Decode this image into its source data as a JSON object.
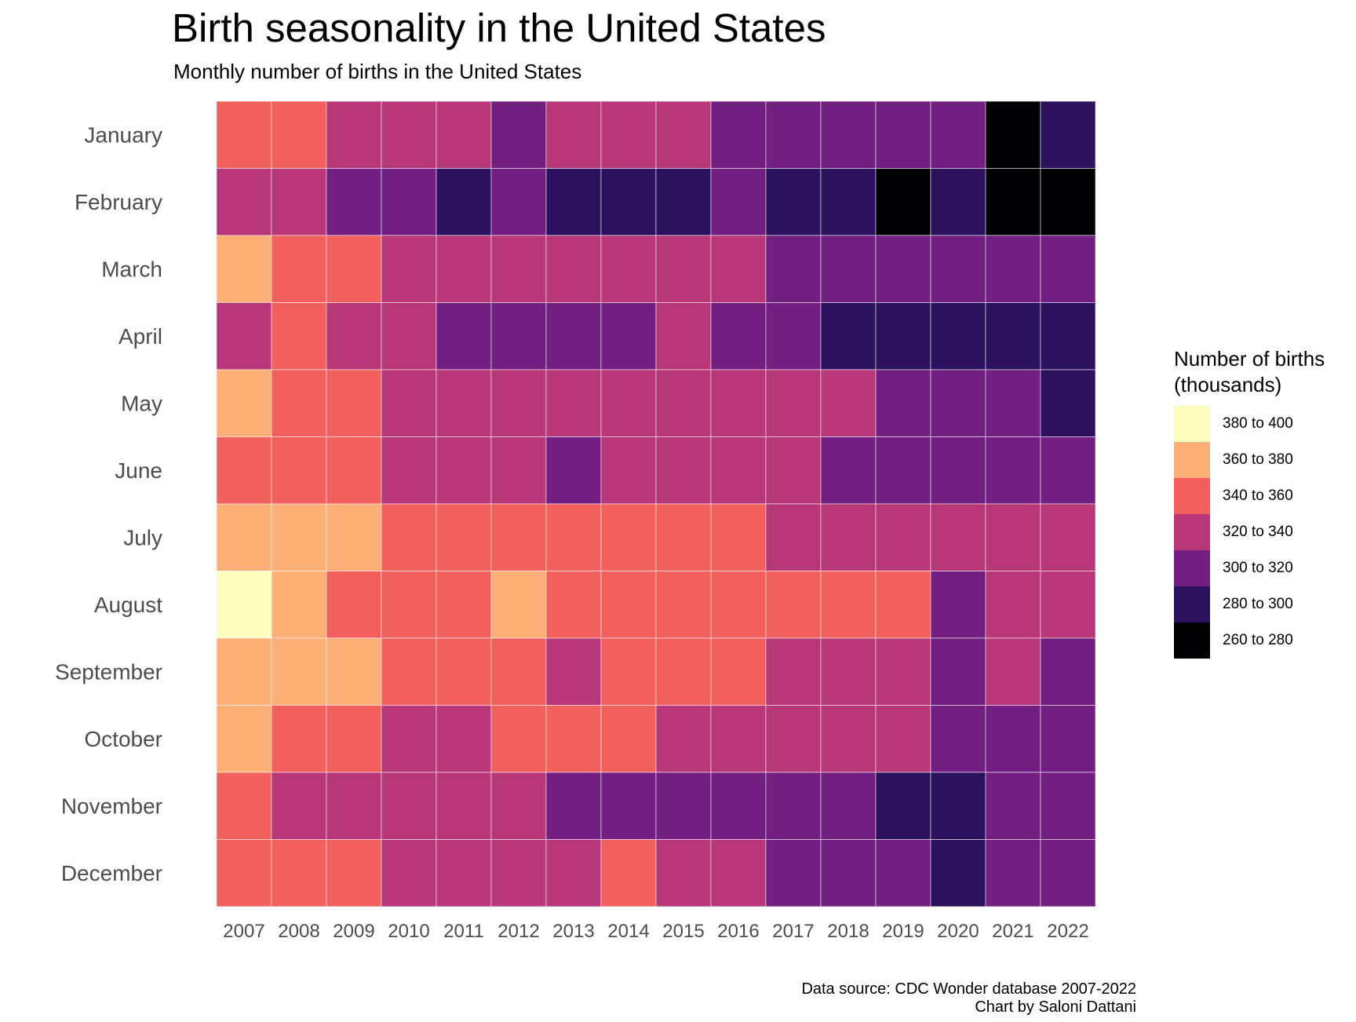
{
  "chart_data": {
    "type": "heatmap",
    "title": "Birth seasonality in the United States",
    "subtitle": "Monthly number of births in the United States",
    "x": [
      "2007",
      "2008",
      "2009",
      "2010",
      "2011",
      "2012",
      "2013",
      "2014",
      "2015",
      "2016",
      "2017",
      "2018",
      "2019",
      "2020",
      "2021",
      "2022"
    ],
    "y": [
      "January",
      "February",
      "March",
      "April",
      "May",
      "June",
      "July",
      "August",
      "September",
      "October",
      "November",
      "December"
    ],
    "legend": {
      "title_lines": [
        "Number of births",
        "(thousands)"
      ],
      "placement": "right",
      "bins": [
        {
          "label": "380 to 400",
          "color": "#fcfdbf"
        },
        {
          "label": "360 to 380",
          "color": "#feae77"
        },
        {
          "label": "340 to 360",
          "color": "#f1605d"
        },
        {
          "label": "320 to 340",
          "color": "#b73779"
        },
        {
          "label": "300 to 320",
          "color": "#721f81"
        },
        {
          "label": "280 to 300",
          "color": "#2c115f"
        },
        {
          "label": "260 to 280",
          "color": "#000004"
        }
      ]
    },
    "values_bin_index": [
      [
        2,
        2,
        3,
        3,
        3,
        4,
        3,
        3,
        3,
        4,
        4,
        4,
        4,
        4,
        6,
        5
      ],
      [
        3,
        3,
        4,
        4,
        5,
        4,
        5,
        5,
        5,
        4,
        5,
        5,
        6,
        5,
        6,
        6
      ],
      [
        1,
        2,
        2,
        3,
        3,
        3,
        3,
        3,
        3,
        3,
        4,
        4,
        4,
        4,
        4,
        4
      ],
      [
        3,
        2,
        3,
        3,
        4,
        4,
        4,
        4,
        3,
        4,
        4,
        5,
        5,
        5,
        5,
        5
      ],
      [
        1,
        2,
        2,
        3,
        3,
        3,
        3,
        3,
        3,
        3,
        3,
        3,
        4,
        4,
        4,
        5
      ],
      [
        2,
        2,
        2,
        3,
        3,
        3,
        4,
        3,
        3,
        3,
        3,
        4,
        4,
        4,
        4,
        4
      ],
      [
        1,
        1,
        1,
        2,
        2,
        2,
        2,
        2,
        2,
        2,
        3,
        3,
        3,
        3,
        3,
        3
      ],
      [
        0,
        1,
        2,
        2,
        2,
        1,
        2,
        2,
        2,
        2,
        2,
        2,
        2,
        4,
        3,
        3
      ],
      [
        1,
        1,
        1,
        2,
        2,
        2,
        3,
        2,
        2,
        2,
        3,
        3,
        3,
        4,
        3,
        4
      ],
      [
        1,
        2,
        2,
        3,
        3,
        2,
        2,
        2,
        3,
        3,
        3,
        3,
        3,
        4,
        4,
        4
      ],
      [
        2,
        3,
        3,
        3,
        3,
        3,
        4,
        4,
        4,
        4,
        4,
        4,
        5,
        5,
        4,
        4
      ],
      [
        2,
        2,
        2,
        3,
        3,
        3,
        3,
        2,
        3,
        3,
        4,
        4,
        4,
        5,
        4,
        4
      ]
    ],
    "caption_lines": [
      "Data source: CDC Wonder database 2007-2022",
      "Chart by Saloni Dattani"
    ]
  }
}
